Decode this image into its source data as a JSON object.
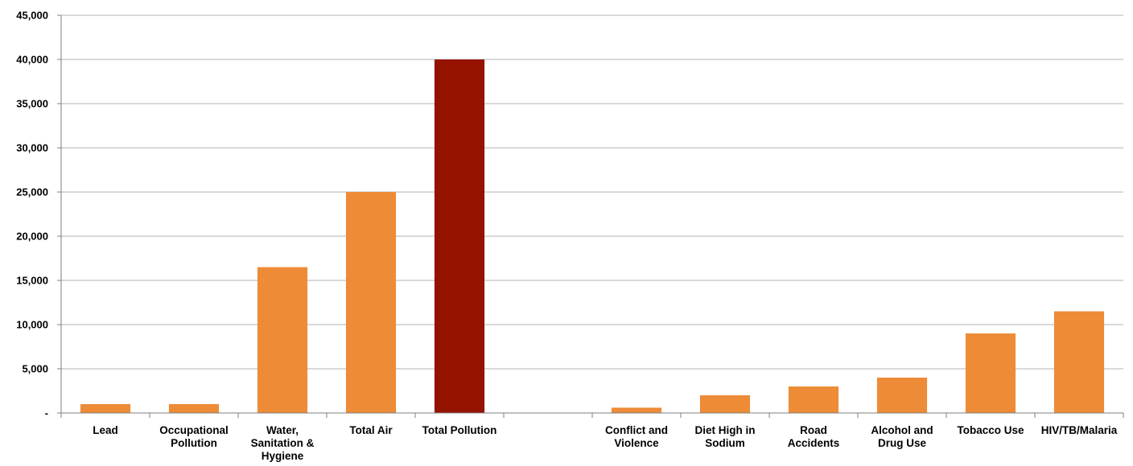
{
  "chart_data": {
    "type": "bar",
    "title": "",
    "xlabel": "",
    "ylabel": "",
    "ylim": [
      0,
      45000
    ],
    "grid": true,
    "legend": "none",
    "y_ticks": [
      "-",
      "5,000",
      "10,000",
      "15,000",
      "20,000",
      "25,000",
      "30,000",
      "35,000",
      "40,000",
      "45,000"
    ],
    "categories": [
      [
        "Lead"
      ],
      [
        "Occupational",
        "Pollution"
      ],
      [
        "Water,",
        "Sanitation &",
        "Hygiene"
      ],
      [
        "Total Air"
      ],
      [
        "Total Pollution"
      ],
      [
        ""
      ],
      [
        "Conflict and",
        "Violence"
      ],
      [
        "Diet High in",
        "Sodium"
      ],
      [
        "Road",
        "Accidents"
      ],
      [
        "Alcohol and",
        "Drug Use"
      ],
      [
        "Tobacco Use"
      ],
      [
        "HIV/TB/Malaria"
      ]
    ],
    "values": [
      1000,
      1000,
      16500,
      25000,
      40000,
      0,
      600,
      2000,
      3000,
      4000,
      9000,
      11500
    ],
    "colors": [
      "#ED8B37",
      "#ED8B37",
      "#ED8B37",
      "#ED8B37",
      "#951200",
      "#ED8B37",
      "#ED8B37",
      "#ED8B37",
      "#ED8B37",
      "#ED8B37",
      "#ED8B37",
      "#ED8B37"
    ]
  }
}
